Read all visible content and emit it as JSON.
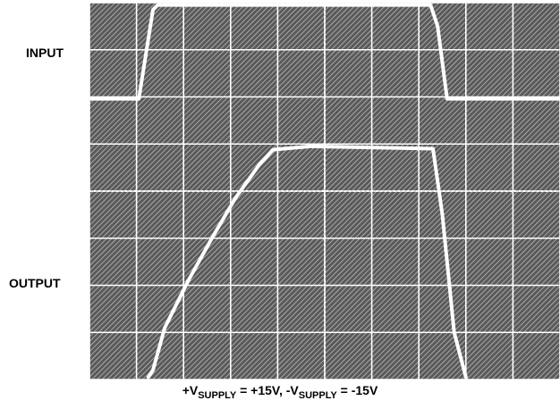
{
  "labels": {
    "input": "INPUT",
    "output": "OUTPUT"
  },
  "caption": {
    "v1": "+V",
    "sub1": "SUPPLY",
    "mid": " = +15V, -V",
    "sub2": "SUPPLY",
    "end": " = -15V"
  },
  "colors": {
    "screen": "#3a3a3a",
    "grid": "#ffffff",
    "trace": "#ffffff"
  },
  "chart_data": {
    "type": "line",
    "title": "",
    "xlabel": "",
    "ylabel": "",
    "divisions": {
      "x": 10,
      "y": 8
    },
    "xlim": [
      0,
      10
    ],
    "ylim": [
      0,
      8
    ],
    "grid": true,
    "series": [
      {
        "x": [
          0,
          1.05,
          1.35,
          1.45,
          7.25,
          7.4,
          7.6,
          10
        ],
        "y": [
          5.96,
          5.96,
          7.85,
          7.95,
          7.95,
          7.5,
          5.96,
          5.96
        ]
      },
      {
        "x": [
          1.25,
          1.35,
          1.6,
          2.1,
          2.6,
          3.1,
          3.6,
          3.9,
          4.7,
          7.3,
          7.5,
          7.75,
          8.0
        ],
        "y": [
          0.05,
          0.2,
          1.1,
          2.1,
          3.0,
          3.85,
          4.55,
          4.88,
          4.95,
          4.9,
          3.5,
          1.0,
          0.05
        ]
      }
    ]
  }
}
